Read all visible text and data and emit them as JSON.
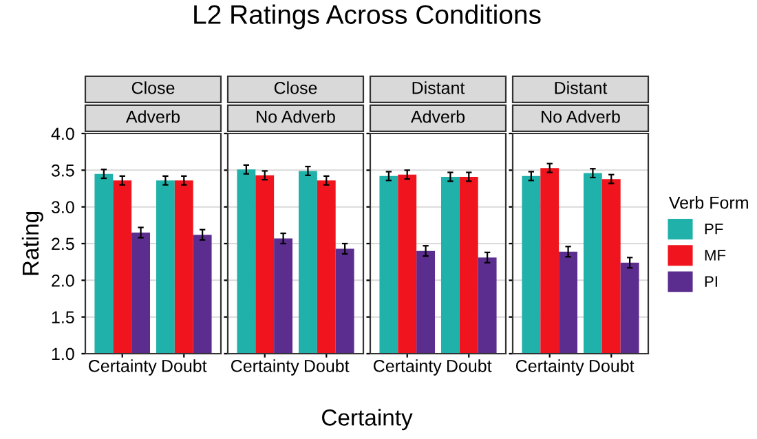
{
  "chart_data": [
    {
      "type": "bar",
      "title": "Close",
      "subtitle": "Adverb",
      "annotations": [
        "L2 Ratings Across Conditions"
      ],
      "xlabel": "Certainty",
      "ylabel": "Rating",
      "categories": [
        "Certainty",
        "Doubt"
      ],
      "ylim": [
        1.0,
        4.0
      ],
      "yticks": [
        {
          "value": 1.0,
          "label": "1.0"
        },
        {
          "value": 1.5,
          "label": "1.5"
        },
        {
          "value": 2.0,
          "label": "2.0"
        },
        {
          "value": 2.5,
          "label": "2.5"
        },
        {
          "value": 3.0,
          "label": "3.0"
        },
        {
          "value": 3.5,
          "label": "3.5"
        },
        {
          "value": 4.0,
          "label": "4.0"
        }
      ],
      "grid": "y",
      "series": [
        {
          "color": "#20b2aa",
          "values": [
            3.45,
            3.36
          ],
          "errors": [
            0.06,
            0.06
          ]
        },
        {
          "color": "#f0141e",
          "values": [
            3.36,
            3.36
          ],
          "errors": [
            0.06,
            0.06
          ]
        },
        {
          "color": "#5b2d8e",
          "values": [
            2.65,
            2.62
          ],
          "errors": [
            0.07,
            0.07
          ]
        }
      ]
    },
    {
      "type": "bar",
      "title": "Close",
      "subtitle": "No Adverb",
      "categories": [
        "Certainty",
        "Doubt"
      ],
      "ylim": [
        1.0,
        4.0
      ],
      "yticks": [
        {
          "value": 1.0,
          "label": null
        },
        {
          "value": 1.5,
          "label": null
        },
        {
          "value": 2.0,
          "label": null
        },
        {
          "value": 2.5,
          "label": null
        },
        {
          "value": 3.0,
          "label": null
        },
        {
          "value": 3.5,
          "label": null
        },
        {
          "value": 4.0,
          "label": null
        }
      ],
      "grid": "y",
      "tick_labels": "x",
      "series": [
        {
          "color": "#20b2aa",
          "values": [
            3.51,
            3.49
          ],
          "errors": [
            0.06,
            0.06
          ]
        },
        {
          "color": "#f0141e",
          "values": [
            3.43,
            3.36
          ],
          "errors": [
            0.06,
            0.06
          ]
        },
        {
          "color": "#5b2d8e",
          "values": [
            2.57,
            2.43
          ],
          "errors": [
            0.07,
            0.07
          ]
        }
      ]
    },
    {
      "type": "bar",
      "title": "Distant",
      "subtitle": "Adverb",
      "categories": [
        "Certainty",
        "Doubt"
      ],
      "ylim": [
        1.0,
        4.0
      ],
      "yticks": [
        {
          "value": 1.0,
          "label": null
        },
        {
          "value": 1.5,
          "label": null
        },
        {
          "value": 2.0,
          "label": null
        },
        {
          "value": 2.5,
          "label": null
        },
        {
          "value": 3.0,
          "label": null
        },
        {
          "value": 3.5,
          "label": null
        },
        {
          "value": 4.0,
          "label": null
        }
      ],
      "grid": "y",
      "tick_labels": "x",
      "series": [
        {
          "color": "#20b2aa",
          "values": [
            3.42,
            3.41
          ],
          "errors": [
            0.06,
            0.06
          ]
        },
        {
          "color": "#f0141e",
          "values": [
            3.44,
            3.41
          ],
          "errors": [
            0.06,
            0.06
          ]
        },
        {
          "color": "#5b2d8e",
          "values": [
            2.4,
            2.31
          ],
          "errors": [
            0.07,
            0.07
          ]
        }
      ]
    },
    {
      "type": "bar",
      "title": "Distant",
      "subtitle": "No Adverb",
      "categories": [
        "Certainty",
        "Doubt"
      ],
      "ylim": [
        1.0,
        4.0
      ],
      "yticks": [
        {
          "value": 1.0,
          "label": null
        },
        {
          "value": 1.5,
          "label": null
        },
        {
          "value": 2.0,
          "label": null
        },
        {
          "value": 2.5,
          "label": null
        },
        {
          "value": 3.0,
          "label": null
        },
        {
          "value": 3.5,
          "label": null
        },
        {
          "value": 4.0,
          "label": null
        }
      ],
      "grid": "y",
      "tick_labels": "x",
      "legend": "right",
      "legend_title": "Verb Form",
      "series": [
        {
          "name": "PF",
          "color": "#20b2aa",
          "values": [
            3.42,
            3.46
          ],
          "errors": [
            0.06,
            0.06
          ]
        },
        {
          "name": "MF",
          "color": "#f0141e",
          "values": [
            3.53,
            3.38
          ],
          "errors": [
            0.06,
            0.06
          ]
        },
        {
          "name": "PI",
          "color": "#5b2d8e",
          "values": [
            2.39,
            2.24
          ],
          "errors": [
            0.07,
            0.07
          ]
        }
      ]
    }
  ]
}
